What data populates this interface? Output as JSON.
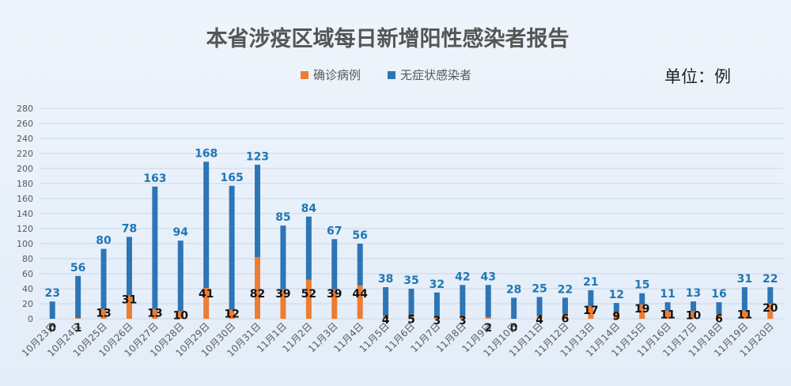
{
  "colors": {
    "confirmed": "#ed7d31",
    "asymptomatic": "#2e75b6",
    "grid": "#c9d7e8"
  },
  "chart_data": {
    "type": "bar",
    "stacked": true,
    "title": "本省涉疫区域每日新增阳性感染者报告",
    "unit_label": "单位：例",
    "legend_position": "top-center",
    "ylim": [
      0,
      280
    ],
    "yticks": [
      0,
      20,
      40,
      60,
      80,
      100,
      120,
      140,
      160,
      180,
      200,
      220,
      240,
      260,
      280
    ],
    "grid": true,
    "categories": [
      "10月23日",
      "10月24日",
      "10月25日",
      "10月26日",
      "10月27日",
      "10月28日",
      "10月29日",
      "10月30日",
      "10月31日",
      "11月1日",
      "11月2日",
      "11月3日",
      "11月4日",
      "11月5日",
      "11月6日",
      "11月7日",
      "11月8日",
      "11月9日",
      "11月10日",
      "11月11日",
      "11月12日",
      "11月13日",
      "11月14日",
      "11月15日",
      "11月16日",
      "11月17日",
      "11月18日",
      "11月19日",
      "11月20日"
    ],
    "series": [
      {
        "name": "确诊病例",
        "values": [
          0,
          1,
          13,
          31,
          13,
          10,
          41,
          12,
          82,
          39,
          52,
          39,
          44,
          4,
          5,
          3,
          3,
          2,
          0,
          4,
          6,
          17,
          9,
          19,
          11,
          10,
          6,
          11,
          20
        ]
      },
      {
        "name": "无症状感染者",
        "values": [
          23,
          56,
          80,
          78,
          163,
          94,
          168,
          165,
          123,
          85,
          84,
          67,
          56,
          38,
          35,
          32,
          42,
          43,
          28,
          25,
          22,
          21,
          12,
          15,
          11,
          13,
          16,
          31,
          22
        ]
      }
    ]
  }
}
